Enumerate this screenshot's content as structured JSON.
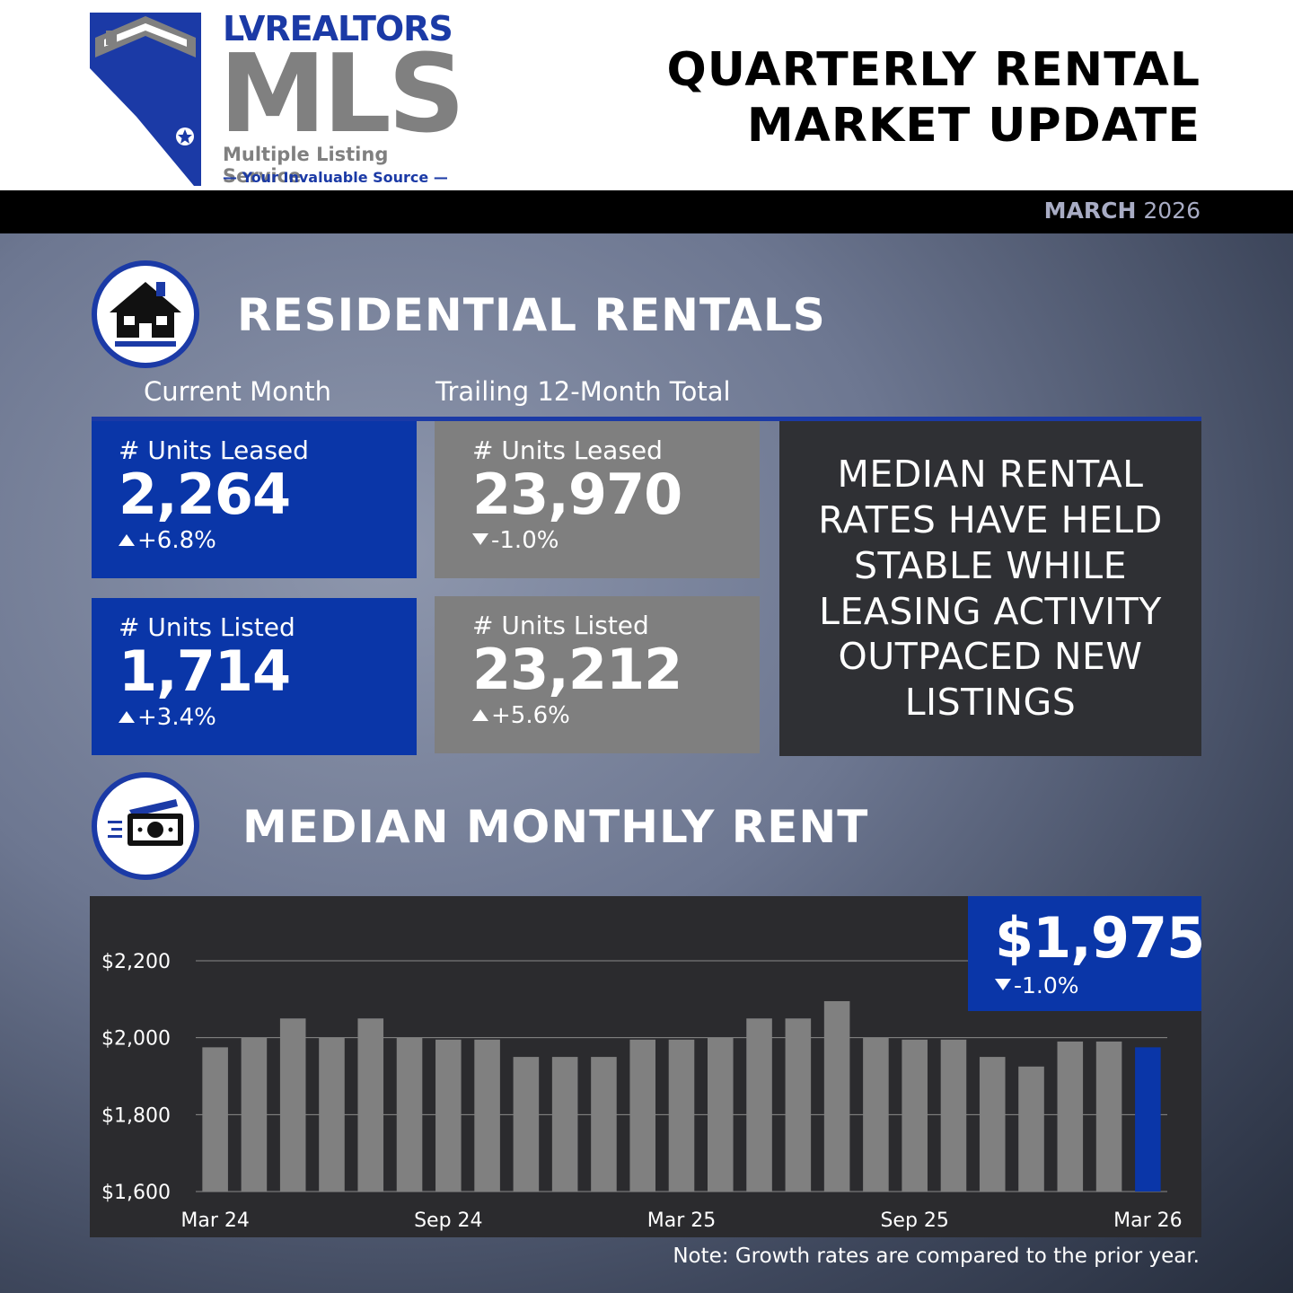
{
  "header": {
    "logo": {
      "brand": "LVREALTORS",
      "name": "MLS",
      "subtitle": "Multiple Listing Service",
      "tagline": "— Your Invaluable Source —"
    },
    "title_line1": "QUARTERLY RENTAL",
    "title_line2": "MARKET UPDATE",
    "date_month": "MARCH",
    "date_year": "2026"
  },
  "residential": {
    "title": "RESIDENTIAL RENTALS",
    "icon": "house-icon",
    "current_label": "Current Month",
    "trailing_label": "Trailing 12-Month Total",
    "current_leased": {
      "label": "# Units Leased",
      "value": "2,264",
      "change": "+6.8%",
      "direction": "up"
    },
    "current_listed": {
      "label": "# Units Listed",
      "value": "1,714",
      "change": "+3.4%",
      "direction": "up"
    },
    "trailing_leased": {
      "label": "# Units Leased",
      "value": "23,970",
      "change": "-1.0%",
      "direction": "down"
    },
    "trailing_listed": {
      "label": "# Units Listed",
      "value": "23,212",
      "change": "+5.6%",
      "direction": "up"
    },
    "callout": "MEDIAN RENTAL RATES HAVE HELD STABLE WHILE LEASING ACTIVITY OUTPACED NEW LISTINGS"
  },
  "rent": {
    "title": "MEDIAN MONTHLY RENT",
    "icon": "cash-icon",
    "current_value": "$1,975",
    "current_change": "-1.0%",
    "current_direction": "down"
  },
  "chart_data": {
    "type": "bar",
    "categories": [
      "Mar 24",
      "Apr 24",
      "May 24",
      "Jun 24",
      "Jul 24",
      "Aug 24",
      "Sep 24",
      "Oct 24",
      "Nov 24",
      "Dec 24",
      "Jan 25",
      "Feb 25",
      "Mar 25",
      "Apr 25",
      "May 25",
      "Jun 25",
      "Jul 25",
      "Aug 25",
      "Sep 25",
      "Oct 25",
      "Nov 25",
      "Dec 25",
      "Jan 26",
      "Feb 26",
      "Mar 26"
    ],
    "tick_labels": [
      "Mar 24",
      "Sep 24",
      "Mar 25",
      "Sep 25",
      "Mar 26"
    ],
    "values": [
      1975,
      2000,
      2050,
      2000,
      2050,
      2000,
      1995,
      1995,
      1950,
      1950,
      1950,
      1995,
      1995,
      2000,
      2050,
      2050,
      2095,
      2000,
      1995,
      1995,
      1950,
      1925,
      1990,
      1990,
      1975
    ],
    "ylim": [
      1600,
      2200
    ],
    "yticks": [
      1600,
      1800,
      2000,
      2200
    ],
    "ytick_labels": [
      "$1,600",
      "$1,800",
      "$2,000",
      "$2,200"
    ],
    "bar_color": "#808080",
    "highlight_color": "#0a36a8",
    "grid": true
  },
  "note": "Note: Growth rates are compared to the prior year."
}
